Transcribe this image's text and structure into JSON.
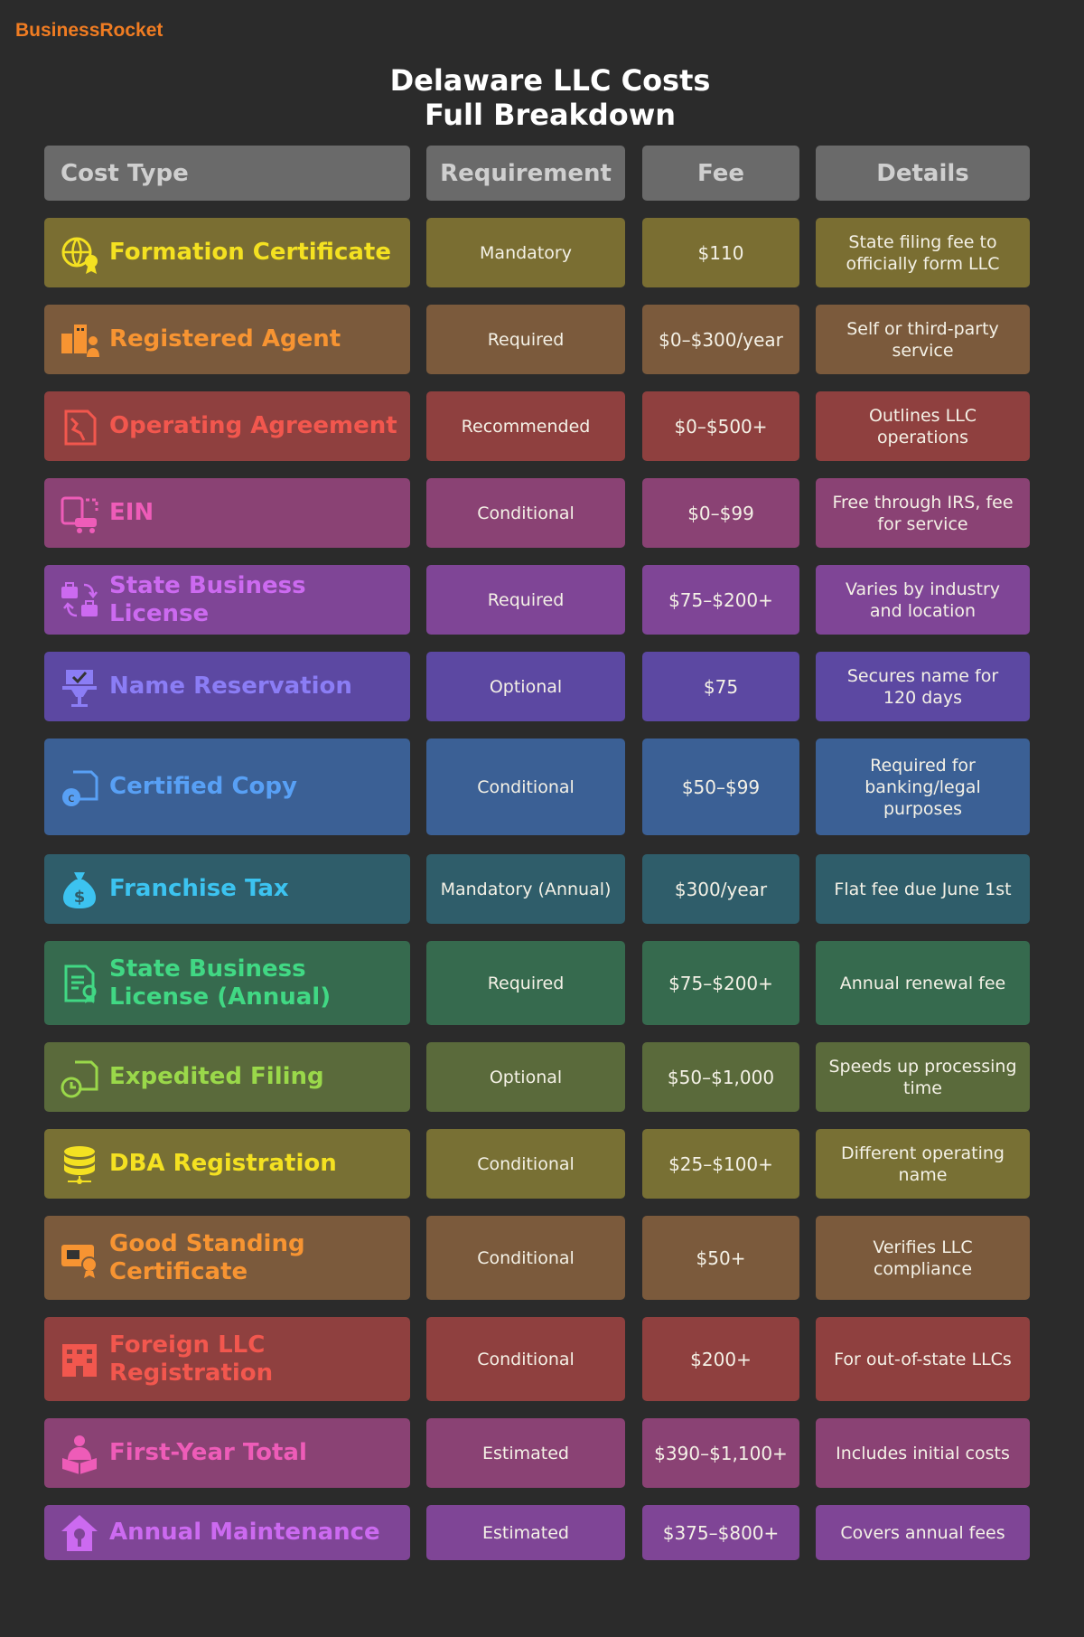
{
  "brand": "BusinessRocket",
  "title_line1": "Delaware LLC Costs",
  "title_line2": "Full Breakdown",
  "headers": {
    "cost_type": "Cost Type",
    "requirement": "Requirement",
    "fee": "Fee",
    "details": "Details"
  },
  "rows": [
    {
      "label": "Formation Certificate",
      "requirement": "Mandatory",
      "fee": "$110",
      "details": "State filing fee to officially form LLC",
      "icon": "globe-certificate-icon",
      "bg": "#7a6e32",
      "accent": "#f4e121"
    },
    {
      "label": "Registered Agent",
      "requirement": "Required",
      "fee": "$0–$300/year",
      "details": "Self or third-party service",
      "icon": "agent-buildings-icon",
      "bg": "#7b5a3c",
      "accent": "#f79432"
    },
    {
      "label": "Operating Agreement",
      "requirement": "Recommended",
      "fee": "$0–$500+",
      "details": "Outlines LLC operations",
      "icon": "document-map-icon",
      "bg": "#8f403f",
      "accent": "#f2574e"
    },
    {
      "label": "EIN",
      "requirement": "Conditional",
      "fee": "$0–$99",
      "details": "Free through IRS, fee for service",
      "icon": "id-transfer-icon",
      "bg": "#8a4274",
      "accent": "#ee5cb8"
    },
    {
      "label": "State Business License",
      "requirement": "Required",
      "fee": "$75–$200+",
      "details": "Varies by industry and location",
      "icon": "briefcase-exchange-icon",
      "bg": "#7f4596",
      "accent": "#cc6af0"
    },
    {
      "label": "Name Reservation",
      "requirement": "Optional",
      "fee": "$75",
      "details": "Secures name for 120 days",
      "icon": "reservation-stand-icon",
      "bg": "#5c48a2",
      "accent": "#8b7df5"
    },
    {
      "label": "Certified Copy",
      "requirement": "Conditional",
      "fee": "$50–$99",
      "details": "Required for banking/legal purposes",
      "icon": "certified-copy-icon",
      "bg": "#3b6095",
      "accent": "#58a0f5"
    },
    {
      "label": "Franchise Tax",
      "requirement": "Mandatory (Annual)",
      "fee": "$300/year",
      "details": "Flat fee due June 1st",
      "icon": "money-bag-icon",
      "bg": "#2f5d6a",
      "accent": "#3cc3f0"
    },
    {
      "label": "State Business License (Annual)",
      "requirement": "Required",
      "fee": "$75–$200+",
      "details": "Annual renewal fee",
      "icon": "license-document-icon",
      "bg": "#366a4e",
      "accent": "#41d884"
    },
    {
      "label": "Expedited Filing",
      "requirement": "Optional",
      "fee": "$50–$1,000",
      "details": "Speeds up processing time",
      "icon": "clock-document-icon",
      "bg": "#5a6a3b",
      "accent": "#9ad84a"
    },
    {
      "label": "DBA Registration",
      "requirement": "Conditional",
      "fee": "$25–$100+",
      "details": "Different operating name",
      "icon": "database-icon",
      "bg": "#787034",
      "accent": "#f4e121"
    },
    {
      "label": "Good Standing Certificate",
      "requirement": "Conditional",
      "fee": "$50+",
      "details": "Verifies LLC compliance",
      "icon": "certificate-badge-icon",
      "bg": "#7b5a3c",
      "accent": "#f79432"
    },
    {
      "label": "Foreign LLC Registration",
      "requirement": "Conditional",
      "fee": "$200+",
      "details": "For out-of-state LLCs",
      "icon": "office-building-icon",
      "bg": "#8f403f",
      "accent": "#f2574e"
    },
    {
      "label": "First-Year Total",
      "requirement": "Estimated",
      "fee": "$390–$1,100+",
      "details": "Includes initial costs",
      "icon": "person-reading-icon",
      "bg": "#8a4274",
      "accent": "#ee5cb8"
    },
    {
      "label": "Annual Maintenance",
      "requirement": "Estimated",
      "fee": "$375–$800+",
      "details": "Covers annual fees",
      "icon": "home-wrench-icon",
      "bg": "#7f4596",
      "accent": "#cc6af0"
    }
  ]
}
